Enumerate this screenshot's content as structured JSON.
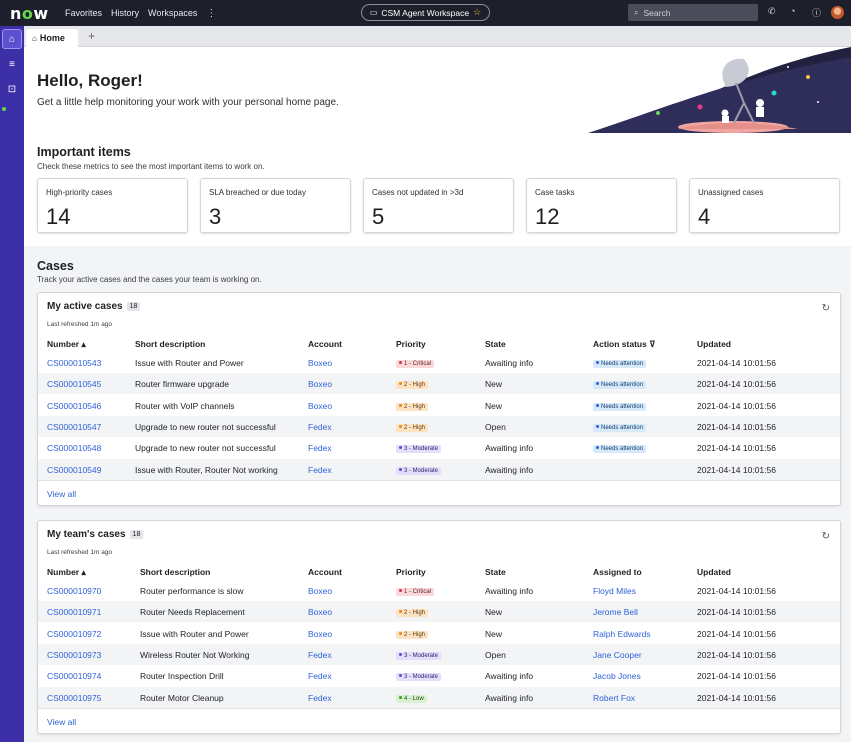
{
  "topnav": {
    "logo": "now",
    "links": [
      "Favorites",
      "History",
      "Workspaces"
    ],
    "more": "⋮",
    "workspace": "CSM Agent Workspace",
    "search_placeholder": "Search"
  },
  "tabs": {
    "home": "Home",
    "add": "+"
  },
  "hero": {
    "greeting": "Hello, Roger!",
    "subtitle": "Get a little help monitoring your work with your personal home page."
  },
  "important": {
    "title": "Important items",
    "subtitle": "Check these metrics to see the most important items to work on.",
    "metrics": [
      {
        "label": "High-priority cases",
        "value": "14"
      },
      {
        "label": "SLA breached or due today",
        "value": "3"
      },
      {
        "label": "Cases not updated in >3d",
        "value": "5"
      },
      {
        "label": "Case tasks",
        "value": "12"
      },
      {
        "label": "Unassigned cases",
        "value": "4"
      }
    ]
  },
  "cases": {
    "title": "Cases",
    "subtitle": "Track your active cases and the cases your team is working on."
  },
  "active": {
    "title": "My active cases",
    "count": "18",
    "refreshed": "Last refreshed 1m ago",
    "headers": [
      "Number ▴",
      "Short description",
      "Account",
      "Priority",
      "State",
      "Action status ⊽",
      "Updated"
    ],
    "rows": [
      {
        "number": "CS000010543",
        "desc": "Issue with Router and Power",
        "account": "Boxeo",
        "priority": "1 - Critical",
        "pclass": "p-crit",
        "state": "Awaiting info",
        "action": "Needs attention",
        "updated": "2021-04-14 10:01:56"
      },
      {
        "number": "CS000010545",
        "desc": "Router firmware upgrade",
        "account": "Boxeo",
        "priority": "2 - High",
        "pclass": "p-high",
        "state": "New",
        "action": "Needs attention",
        "updated": "2021-04-14 10:01:56"
      },
      {
        "number": "CS000010546",
        "desc": "Router with VoIP channels",
        "account": "Boxeo",
        "priority": "2 - High",
        "pclass": "p-high",
        "state": "New",
        "action": "Needs attention",
        "updated": "2021-04-14 10:01:56"
      },
      {
        "number": "CS000010547",
        "desc": "Upgrade to new router not successful",
        "account": "Fedex",
        "priority": "2 - High",
        "pclass": "p-high",
        "state": "Open",
        "action": "Needs attention",
        "updated": "2021-04-14 10:01:56"
      },
      {
        "number": "CS000010548",
        "desc": "Upgrade to new router not successful",
        "account": "Fedex",
        "priority": "3 - Moderate",
        "pclass": "p-mod",
        "state": "Awaiting info",
        "action": "Needs attention",
        "updated": "2021-04-14 10:01:56"
      },
      {
        "number": "CS000010549",
        "desc": "Issue with Router, Router Not working",
        "account": "Fedex",
        "priority": "3 - Moderate",
        "pclass": "p-mod",
        "state": "Awaiting info",
        "action": "",
        "updated": "2021-04-14 10:01:56"
      }
    ],
    "view_all": "View all"
  },
  "team": {
    "title": "My team's cases",
    "count": "18",
    "refreshed": "Last refreshed 1m ago",
    "headers": [
      "Number ▴",
      "Short description",
      "Account",
      "Priority",
      "State",
      "Assigned to",
      "Updated"
    ],
    "rows": [
      {
        "number": "CS000010970",
        "desc": "Router performance is slow",
        "account": "Boxeo",
        "priority": "1 - Critical",
        "pclass": "p-crit",
        "state": "Awaiting info",
        "assigned": "Floyd Miles",
        "updated": "2021-04-14 10:01:56"
      },
      {
        "number": "CS000010971",
        "desc": "Router Needs Replacement",
        "account": "Boxeo",
        "priority": "2 - High",
        "pclass": "p-high",
        "state": "New",
        "assigned": "Jerome Bell",
        "updated": "2021-04-14 10:01:56"
      },
      {
        "number": "CS000010972",
        "desc": "Issue with Router and Power",
        "account": "Boxeo",
        "priority": "2 - High",
        "pclass": "p-high",
        "state": "New",
        "assigned": "Ralph Edwards",
        "updated": "2021-04-14 10:01:56"
      },
      {
        "number": "CS000010973",
        "desc": "Wireless Router Not Working",
        "account": "Fedex",
        "priority": "3 - Moderate",
        "pclass": "p-mod",
        "state": "Open",
        "assigned": "Jane Cooper",
        "updated": "2021-04-14 10:01:56"
      },
      {
        "number": "CS000010974",
        "desc": "Router Inspection Drill",
        "account": "Fedex",
        "priority": "3 - Moderate",
        "pclass": "p-mod",
        "state": "Awaiting info",
        "assigned": "Jacob Jones",
        "updated": "2021-04-14 10:01:56"
      },
      {
        "number": "CS000010975",
        "desc": "Router Motor Cleanup",
        "account": "Fedex",
        "priority": "4 - Low",
        "pclass": "p-low",
        "state": "Awaiting info",
        "assigned": "Robert Fox",
        "updated": "2021-04-14 10:01:56"
      }
    ],
    "view_all": "View all"
  },
  "icons": [
    "home-icon",
    "list-icon",
    "inbox-icon",
    "phone-icon",
    "bell-icon",
    "help-icon",
    "refresh-icon",
    "search-icon",
    "star-icon"
  ]
}
